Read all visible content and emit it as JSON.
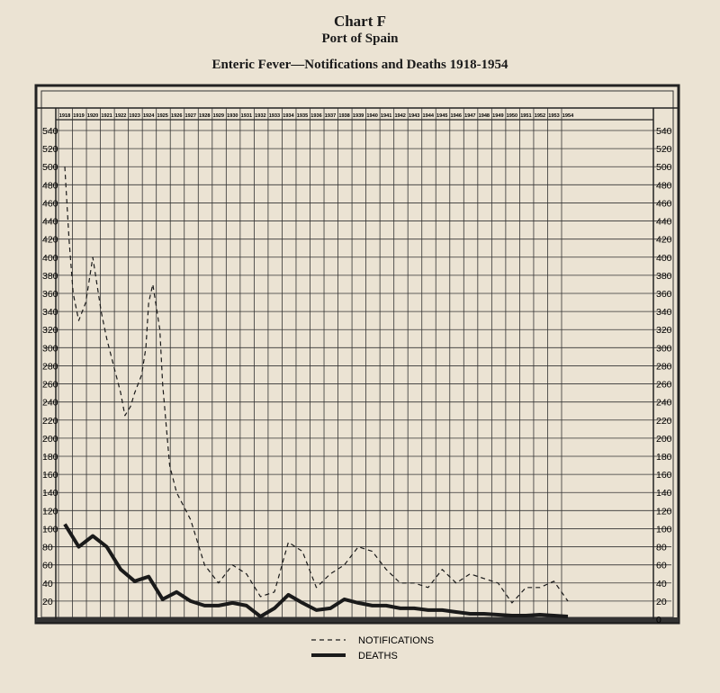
{
  "chart_data": {
    "type": "line",
    "title": "Chart F",
    "subtitle": "Port of Spain",
    "heading": "Enteric Fever—Notifications and Deaths 1918-1954",
    "years": [
      "1918",
      "1919",
      "1920",
      "1921",
      "1922",
      "1923",
      "1924",
      "1925",
      "1926",
      "1927",
      "1928",
      "1929",
      "1930",
      "1931",
      "1932",
      "1933",
      "1934",
      "1935",
      "1936",
      "1937",
      "1938",
      "1939",
      "1940",
      "1941",
      "1942",
      "1943",
      "1944",
      "1945",
      "1946",
      "1947",
      "1948",
      "1949",
      "1950",
      "1951",
      "1952",
      "1953",
      "1954"
    ],
    "ylim": [
      0,
      540
    ],
    "y_ticks_left": [
      "540",
      "520",
      "500",
      "480",
      "460",
      "440",
      "420",
      "400",
      "380",
      "360",
      "340",
      "320",
      "300",
      "280",
      "260",
      "240",
      "220",
      "200",
      "180",
      "160",
      "140",
      "120",
      "100",
      "80",
      "60",
      "40",
      "20"
    ],
    "y_ticks_right": [
      "540",
      "520",
      "500",
      "480",
      "460",
      "440",
      "420",
      "400",
      "380",
      "360",
      "340",
      "320",
      "300",
      "280",
      "260",
      "240",
      "220",
      "200",
      "180",
      "160",
      "140",
      "120",
      "100",
      "80",
      "60",
      "40",
      "20",
      "0"
    ],
    "series": [
      {
        "name": "NOTIFICATIONS",
        "style": "dashed",
        "color": "#1a1a1a",
        "points": [
          [
            1918,
            500
          ],
          [
            1918.3,
            420
          ],
          [
            1918.6,
            360
          ],
          [
            1919,
            330
          ],
          [
            1919.5,
            350
          ],
          [
            1920,
            400
          ],
          [
            1920.6,
            340
          ],
          [
            1921,
            310
          ],
          [
            1921.5,
            280
          ],
          [
            1922,
            250
          ],
          [
            1922.3,
            225
          ],
          [
            1922.7,
            235
          ],
          [
            1923,
            250
          ],
          [
            1923.5,
            270
          ],
          [
            1923.8,
            300
          ],
          [
            1924,
            350
          ],
          [
            1924.3,
            370
          ],
          [
            1924.8,
            320
          ],
          [
            1925,
            260
          ],
          [
            1925.5,
            170
          ],
          [
            1926,
            140
          ],
          [
            1927,
            110
          ],
          [
            1928,
            60
          ],
          [
            1929,
            40
          ],
          [
            1930,
            60
          ],
          [
            1931,
            50
          ],
          [
            1932,
            25
          ],
          [
            1933,
            30
          ],
          [
            1934,
            85
          ],
          [
            1935,
            75
          ],
          [
            1936,
            35
          ],
          [
            1937,
            50
          ],
          [
            1938,
            60
          ],
          [
            1939,
            80
          ],
          [
            1940,
            75
          ],
          [
            1941,
            55
          ],
          [
            1942,
            40
          ],
          [
            1943,
            40
          ],
          [
            1944,
            35
          ],
          [
            1945,
            55
          ],
          [
            1946,
            40
          ],
          [
            1947,
            50
          ],
          [
            1948,
            45
          ],
          [
            1949,
            40
          ],
          [
            1950,
            18
          ],
          [
            1951,
            35
          ],
          [
            1952,
            35
          ],
          [
            1953,
            42
          ],
          [
            1954,
            20
          ]
        ]
      },
      {
        "name": "DEATHS",
        "style": "solid",
        "color": "#1a1a1a",
        "points": [
          [
            1918,
            105
          ],
          [
            1919,
            80
          ],
          [
            1920,
            92
          ],
          [
            1921,
            80
          ],
          [
            1922,
            55
          ],
          [
            1923,
            42
          ],
          [
            1924,
            47
          ],
          [
            1925,
            22
          ],
          [
            1926,
            30
          ],
          [
            1927,
            20
          ],
          [
            1928,
            15
          ],
          [
            1929,
            15
          ],
          [
            1930,
            18
          ],
          [
            1931,
            15
          ],
          [
            1932,
            3
          ],
          [
            1933,
            12
          ],
          [
            1934,
            27
          ],
          [
            1935,
            18
          ],
          [
            1936,
            10
          ],
          [
            1937,
            12
          ],
          [
            1938,
            22
          ],
          [
            1939,
            18
          ],
          [
            1940,
            15
          ],
          [
            1941,
            15
          ],
          [
            1942,
            12
          ],
          [
            1943,
            12
          ],
          [
            1944,
            10
          ],
          [
            1945,
            10
          ],
          [
            1946,
            8
          ],
          [
            1947,
            6
          ],
          [
            1948,
            6
          ],
          [
            1949,
            5
          ],
          [
            1950,
            4
          ],
          [
            1951,
            4
          ],
          [
            1952,
            5
          ],
          [
            1953,
            4
          ],
          [
            1954,
            3
          ]
        ]
      }
    ],
    "legend": {
      "position": "bottom-center",
      "notifications_label": "NOTIFICATIONS",
      "deaths_label": "DEATHS"
    },
    "grid": true
  }
}
